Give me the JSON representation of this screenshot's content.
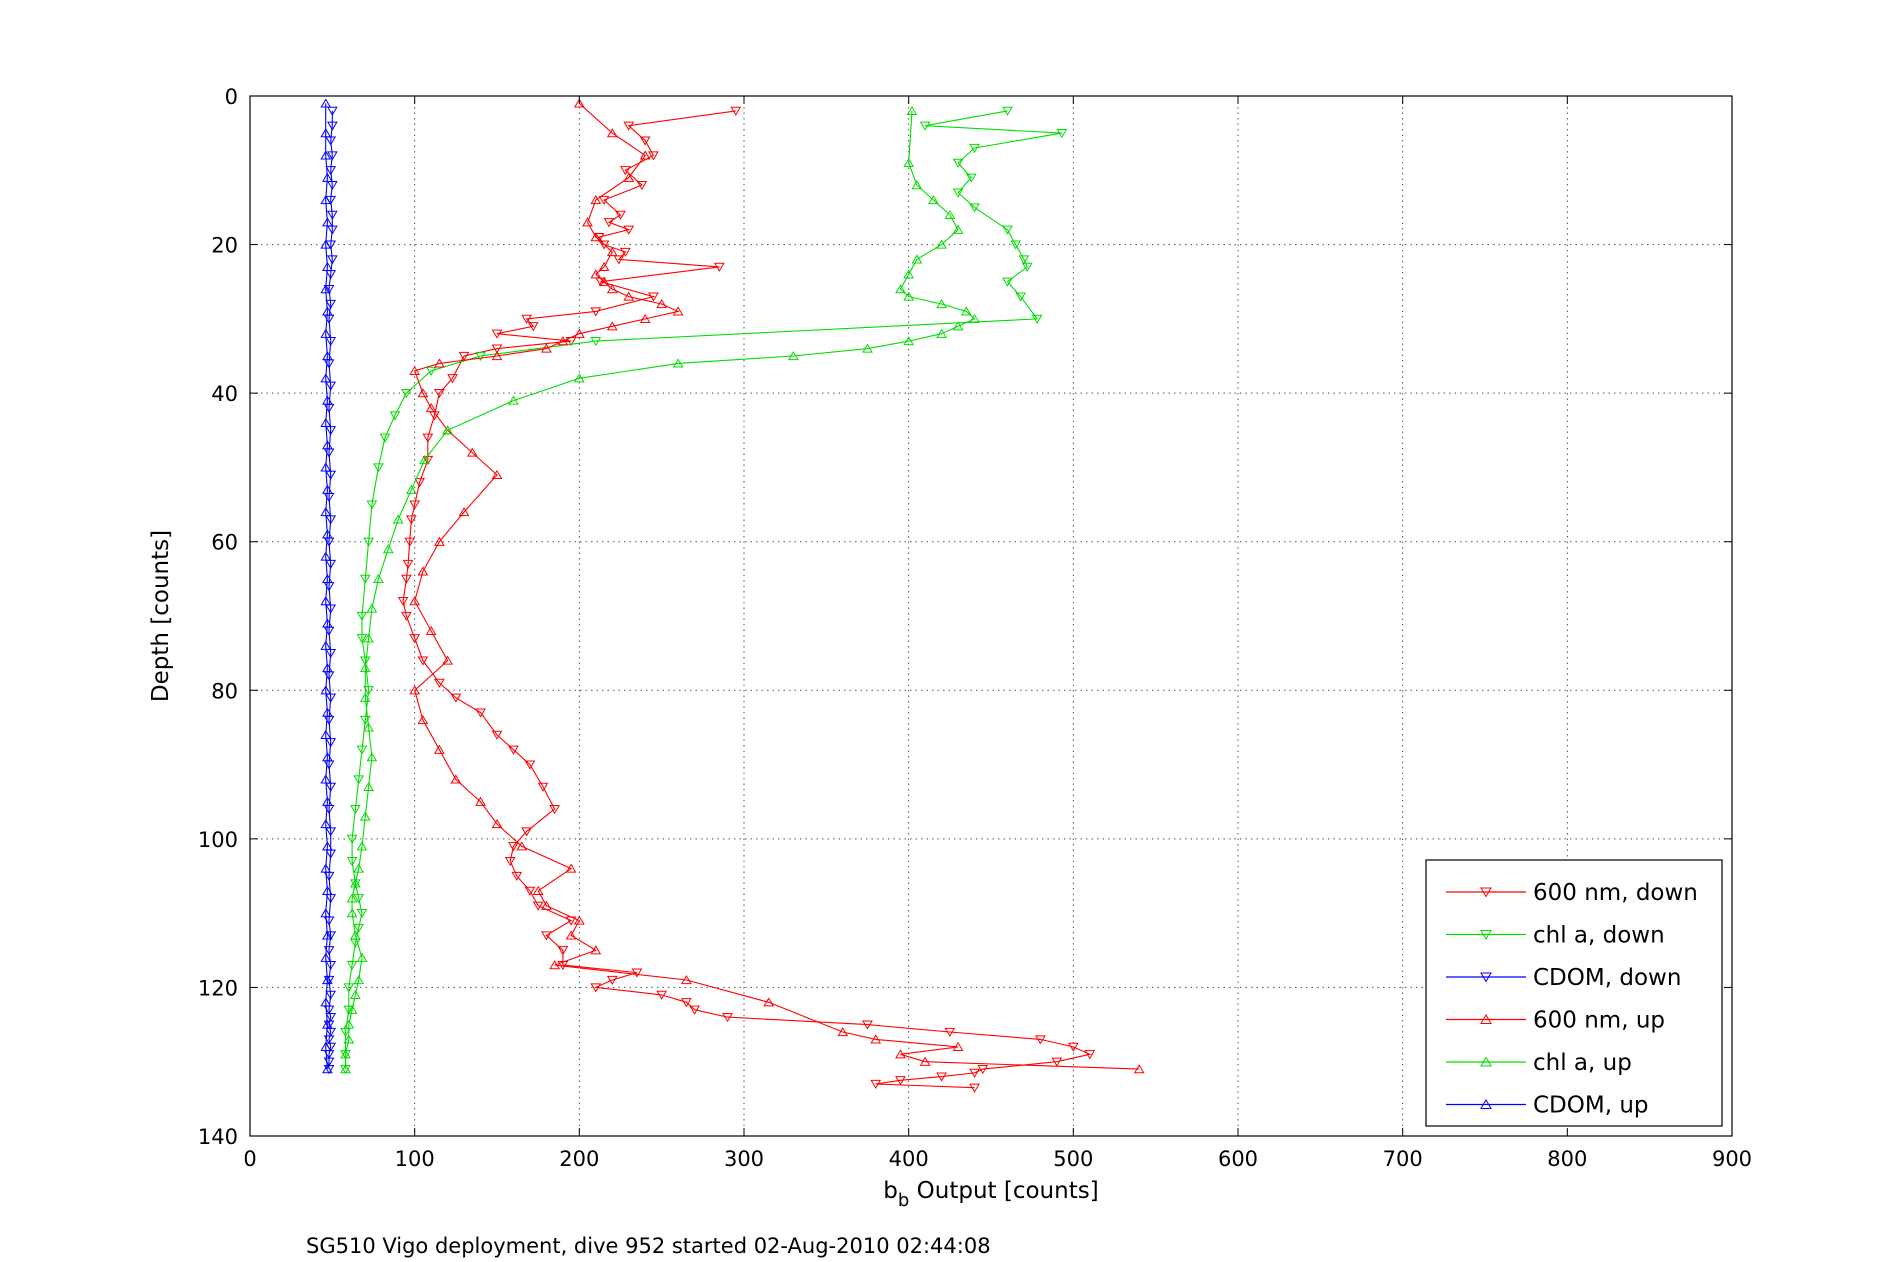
{
  "chart_data": {
    "type": "line",
    "xlabel_main": "b",
    "xlabel_sub": "b",
    "xlabel_rest": " Output [counts]",
    "ylabel": "Depth [counts]",
    "caption": "SG510 Vigo deployment, dive 952 started 02-Aug-2010 02:44:08",
    "xlim": [
      0,
      900
    ],
    "ylim": [
      0,
      140
    ],
    "y_reversed": true,
    "grid": true,
    "legend_position": "bottom-right",
    "xticks": [
      0,
      100,
      200,
      300,
      400,
      500,
      600,
      700,
      800,
      900
    ],
    "yticks": [
      0,
      20,
      40,
      60,
      80,
      100,
      120,
      140
    ],
    "xtick_labels": [
      "0",
      "100",
      "200",
      "300",
      "400",
      "500",
      "600",
      "700",
      "800",
      "900"
    ],
    "ytick_labels": [
      "0",
      "20",
      "40",
      "60",
      "80",
      "100",
      "120",
      "140"
    ],
    "series": [
      {
        "name": "600 nm, down",
        "color": "#ff0000",
        "marker": "triangle-down",
        "x": [
          295,
          230,
          240,
          245,
          228,
          238,
          215,
          225,
          218,
          230,
          212,
          215,
          228,
          224,
          285,
          213,
          245,
          210,
          168,
          172,
          150,
          195,
          150,
          130,
          123,
          115,
          112,
          108,
          108,
          103,
          100,
          98,
          97,
          96,
          95,
          93,
          95,
          100,
          105,
          115,
          125,
          140,
          150,
          160,
          170,
          178,
          185,
          168,
          160,
          158,
          162,
          170,
          175,
          195,
          180,
          190,
          190,
          235,
          220,
          210,
          250,
          265,
          270,
          290,
          375,
          425,
          480,
          500,
          510,
          490,
          445,
          440,
          420,
          395,
          380,
          440
        ],
        "y": [
          2,
          4,
          6,
          8,
          10,
          12,
          14,
          16,
          17,
          18,
          19,
          20,
          21,
          22,
          23,
          25,
          27,
          29,
          30,
          31,
          32,
          33,
          34,
          35,
          38,
          40,
          43,
          46,
          49,
          52,
          55,
          57,
          60,
          63,
          65,
          68,
          70,
          73,
          76,
          79,
          81,
          83,
          86,
          88,
          90,
          93,
          96,
          99,
          101,
          103,
          105,
          107,
          109,
          111,
          113,
          115,
          117,
          118,
          119,
          120,
          121,
          122,
          123,
          124,
          125,
          126,
          127,
          128,
          129,
          130,
          131,
          131.5,
          132,
          132.5,
          133,
          133.5
        ]
      },
      {
        "name": "chl a, down",
        "color": "#00dd00",
        "marker": "triangle-down",
        "x": [
          460,
          410,
          493,
          440,
          430,
          438,
          430,
          440,
          460,
          465,
          470,
          472,
          460,
          468,
          478,
          210,
          140,
          110,
          95,
          88,
          82,
          78,
          74,
          72,
          70,
          68,
          68,
          70,
          72,
          70,
          68,
          66,
          64,
          62,
          62,
          64,
          66,
          68,
          66,
          64,
          62,
          60,
          60,
          58,
          58,
          58
        ],
        "y": [
          2,
          4,
          5,
          7,
          9,
          11,
          13,
          15,
          18,
          20,
          22,
          23,
          25,
          27,
          30,
          33,
          35,
          37,
          40,
          43,
          46,
          50,
          55,
          60,
          65,
          70,
          73,
          76,
          80,
          84,
          88,
          92,
          96,
          100,
          103,
          106,
          108,
          110,
          112,
          114,
          117,
          120,
          123,
          126,
          129,
          131
        ]
      },
      {
        "name": "CDOM, down",
        "color": "#0000ff",
        "marker": "triangle-down",
        "x": [
          50,
          50,
          49,
          50,
          49,
          50,
          49,
          50,
          50,
          49,
          50,
          49,
          48,
          49,
          48,
          49,
          48,
          49,
          48,
          49,
          48,
          49,
          48,
          49,
          48,
          49,
          48,
          49,
          48,
          49,
          48,
          49,
          48,
          49,
          48,
          49,
          48,
          49,
          49,
          48,
          49,
          48,
          49,
          48,
          49,
          48,
          49,
          48,
          49,
          48,
          49,
          48,
          49,
          48,
          48,
          48
        ],
        "y": [
          2,
          4,
          6,
          8,
          10,
          12,
          14,
          16,
          18,
          20,
          22,
          24,
          26,
          28,
          30,
          33,
          36,
          39,
          42,
          45,
          48,
          51,
          54,
          57,
          60,
          63,
          66,
          69,
          72,
          75,
          78,
          81,
          84,
          87,
          90,
          93,
          96,
          99,
          102,
          105,
          108,
          111,
          113,
          115,
          117,
          119,
          121,
          123,
          124,
          125,
          126,
          127,
          128,
          129,
          130,
          131
        ]
      },
      {
        "name": "600 nm, up",
        "color": "#ff0000",
        "marker": "triangle-up",
        "x": [
          540,
          410,
          395,
          430,
          380,
          360,
          315,
          265,
          185,
          210,
          195,
          200,
          180,
          175,
          195,
          165,
          150,
          140,
          125,
          115,
          105,
          100,
          120,
          110,
          100,
          105,
          115,
          130,
          150,
          135,
          120,
          110,
          105,
          100,
          115,
          150,
          180,
          190,
          200,
          220,
          240,
          260,
          250,
          230,
          220,
          215,
          210,
          215,
          220,
          210,
          205,
          210,
          230,
          240,
          220,
          200
        ],
        "y": [
          131,
          130,
          129,
          128,
          127,
          126,
          122,
          119,
          117,
          115,
          113,
          111,
          109,
          107,
          104,
          101,
          98,
          95,
          92,
          88,
          84,
          80,
          76,
          72,
          68,
          64,
          60,
          56,
          51,
          48,
          45,
          42,
          40,
          37,
          36,
          35,
          34,
          33,
          32,
          31,
          30,
          29,
          28,
          27,
          26,
          25,
          24,
          23,
          21,
          19,
          17,
          14,
          11,
          8,
          5,
          1
        ]
      },
      {
        "name": "chl a, up",
        "color": "#00dd00",
        "marker": "triangle-up",
        "x": [
          58,
          58,
          60,
          60,
          62,
          64,
          66,
          68,
          64,
          62,
          62,
          64,
          66,
          68,
          70,
          72,
          74,
          72,
          70,
          70,
          72,
          74,
          78,
          84,
          90,
          98,
          106,
          120,
          160,
          200,
          260,
          330,
          375,
          400,
          420,
          430,
          440,
          435,
          420,
          400,
          395,
          400,
          405,
          420,
          430,
          425,
          415,
          405,
          400,
          402
        ],
        "y": [
          131,
          129,
          127,
          125,
          123,
          121,
          119,
          116,
          113,
          110,
          108,
          106,
          104,
          101,
          97,
          93,
          89,
          85,
          81,
          77,
          73,
          69,
          65,
          61,
          57,
          53,
          49,
          45,
          41,
          38,
          36,
          35,
          34,
          33,
          32,
          31,
          30,
          29,
          28,
          27,
          26,
          24,
          22,
          20,
          18,
          16,
          14,
          12,
          9,
          2
        ]
      },
      {
        "name": "CDOM, up",
        "color": "#0000ff",
        "marker": "triangle-up",
        "x": [
          47,
          46,
          47,
          46,
          47,
          46,
          47,
          46,
          47,
          46,
          47,
          46,
          47,
          46,
          47,
          46,
          47,
          46,
          47,
          46,
          47,
          46,
          47,
          46,
          47,
          46,
          47,
          46,
          47,
          46,
          47,
          46,
          47,
          46,
          47,
          46,
          47,
          46,
          47,
          46,
          47,
          46,
          46,
          46
        ],
        "y": [
          131,
          128,
          125,
          122,
          119,
          116,
          113,
          110,
          107,
          104,
          101,
          98,
          95,
          92,
          89,
          86,
          83,
          80,
          77,
          74,
          71,
          68,
          65,
          62,
          59,
          56,
          53,
          50,
          47,
          44,
          41,
          38,
          35,
          32,
          29,
          26,
          23,
          20,
          17,
          14,
          11,
          8,
          5,
          1
        ]
      }
    ]
  }
}
